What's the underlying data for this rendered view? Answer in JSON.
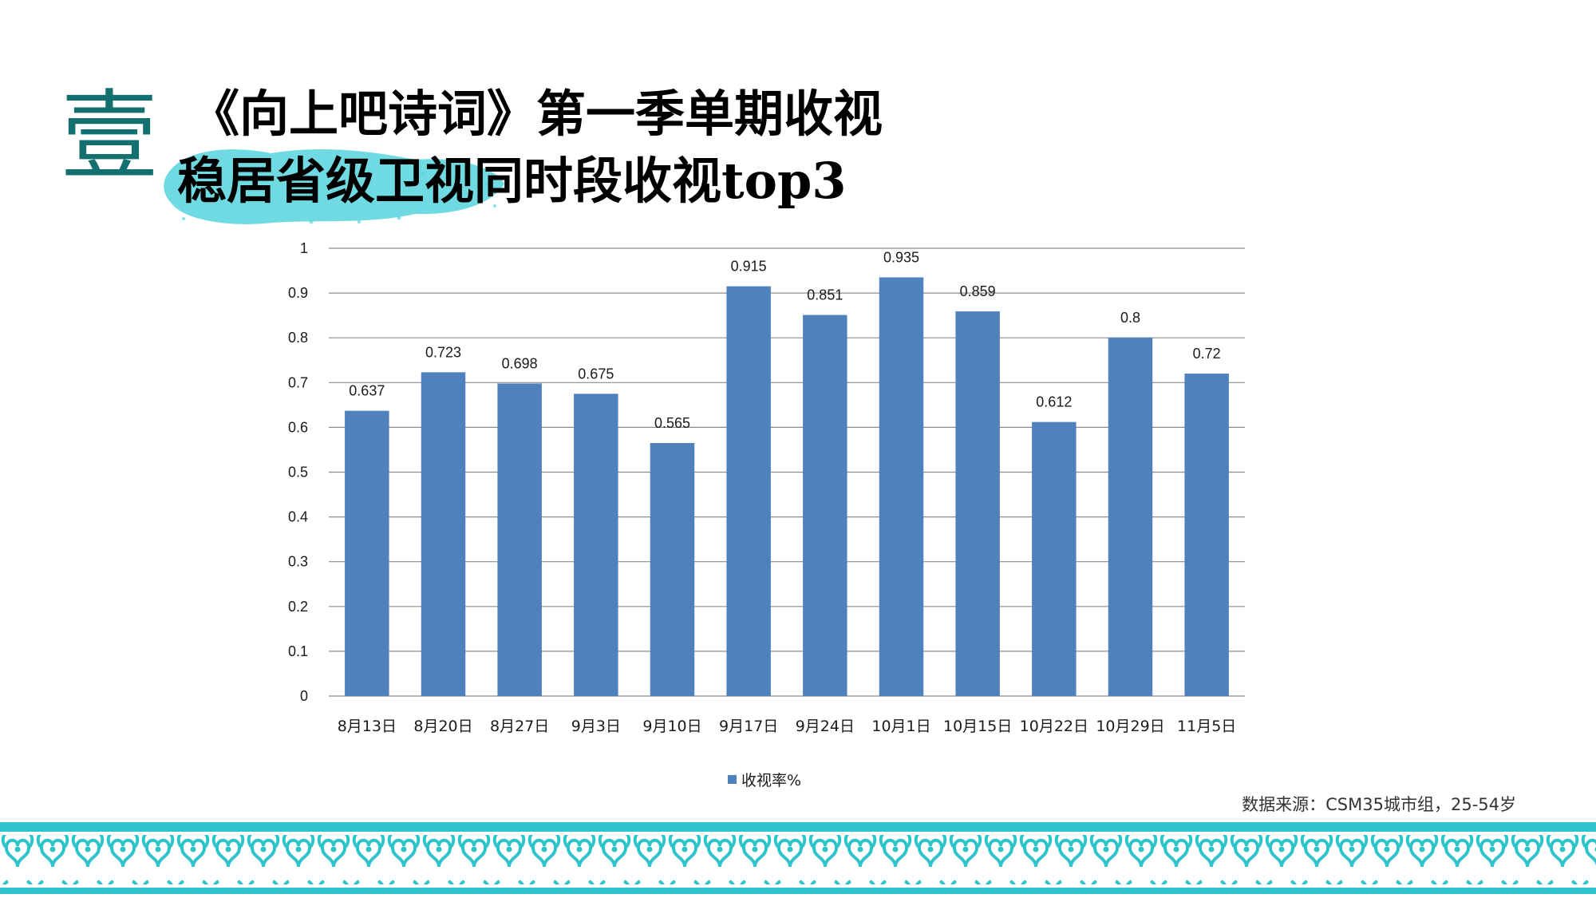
{
  "title": {
    "badge": "壹",
    "line1": "《向上吧诗词》第一季单期收视",
    "line2": "稳居省级卫视同时段收视top3"
  },
  "colors": {
    "bar": "#4f81bd",
    "grid": "#8c8c8c",
    "accent_teal": "#2ec4cc",
    "badge_teal": "#14706f"
  },
  "chart_data": {
    "type": "bar",
    "categories": [
      "8月13日",
      "8月20日",
      "8月27日",
      "9月3日",
      "9月10日",
      "9月17日",
      "9月24日",
      "10月1日",
      "10月15日",
      "10月22日",
      "10月29日",
      "11月5日"
    ],
    "series": [
      {
        "name": "收视率%",
        "values": [
          0.637,
          0.723,
          0.698,
          0.675,
          0.565,
          0.915,
          0.851,
          0.935,
          0.859,
          0.612,
          0.8,
          0.72
        ]
      }
    ],
    "data_labels": [
      "0.637",
      "0.723",
      "0.698",
      "0.675",
      "0.565",
      "0.915",
      "0.851",
      "0.935",
      "0.859",
      "0.612",
      "0.8",
      "0.72"
    ],
    "yticks": [
      "0",
      "0.1",
      "0.2",
      "0.3",
      "0.4",
      "0.5",
      "0.6",
      "0.7",
      "0.8",
      "0.9",
      "1"
    ],
    "ylim": [
      0,
      1
    ],
    "grid": true,
    "legend_position": "bottom"
  },
  "legend": {
    "label": "收视率%"
  },
  "source_note": "数据来源：CSM35城市组，25-54岁"
}
